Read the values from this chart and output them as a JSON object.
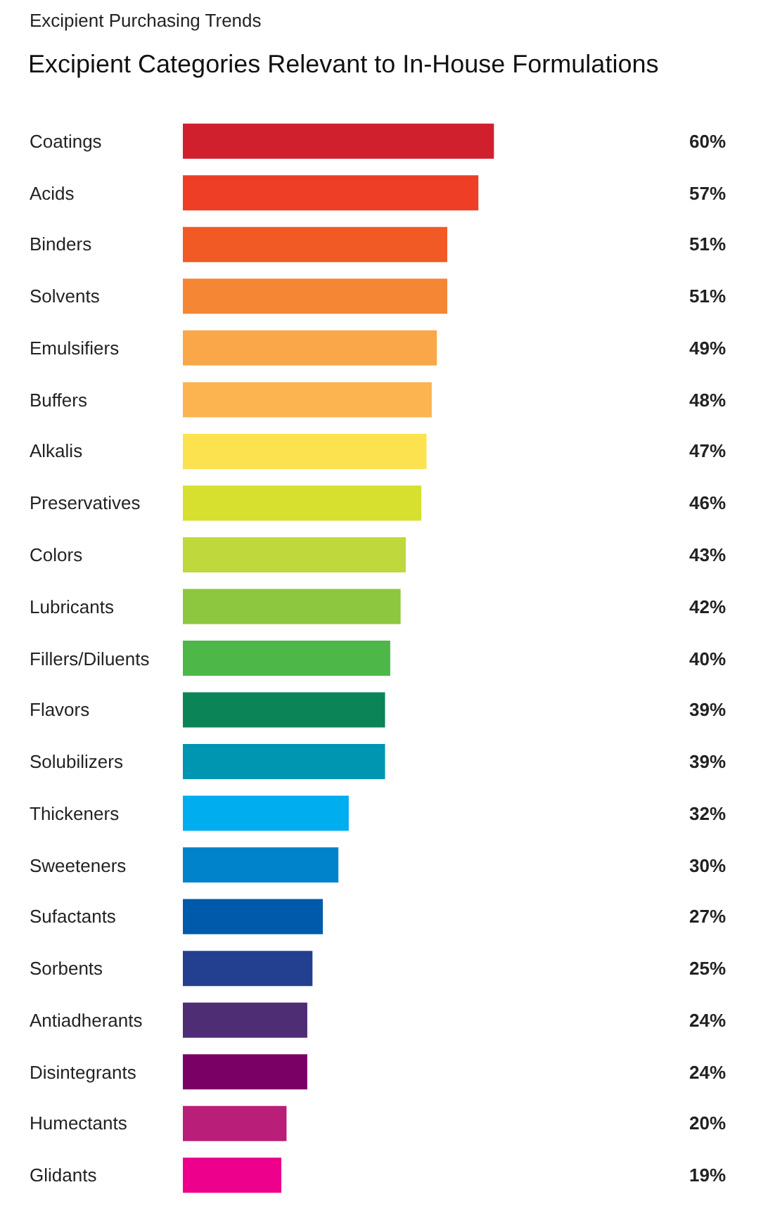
{
  "chart_data": {
    "type": "bar",
    "orientation": "horizontal",
    "subtitle": "Excipient Purchasing Trends",
    "title": "Excipient Categories Relevant to In-House Formulations",
    "categories": [
      "Coatings",
      "Acids",
      "Binders",
      "Solvents",
      "Emulsifiers",
      "Buffers",
      "Alkalis",
      "Preservatives",
      "Colors",
      "Lubricants",
      "Fillers/Diluents",
      "Flavors",
      "Solubilizers",
      "Thickeners",
      "Sweeteners",
      "Sufactants",
      "Sorbents",
      "Antiadherants",
      "Disintegrants",
      "Humectants",
      "Glidants"
    ],
    "values": [
      60,
      57,
      51,
      51,
      49,
      48,
      47,
      46,
      43,
      42,
      40,
      39,
      39,
      32,
      30,
      27,
      25,
      24,
      24,
      20,
      19
    ],
    "value_labels": [
      "60%",
      "57%",
      "51%",
      "51%",
      "49%",
      "48%",
      "47%",
      "46%",
      "43%",
      "42%",
      "40%",
      "39%",
      "39%",
      "32%",
      "30%",
      "27%",
      "25%",
      "24%",
      "24%",
      "20%",
      "19%"
    ],
    "colors": [
      "#d0202e",
      "#ef3e26",
      "#f15a24",
      "#f58634",
      "#faa74a",
      "#fbb450",
      "#fde24f",
      "#d7df2f",
      "#bfd83b",
      "#8dc63f",
      "#4db848",
      "#0b8457",
      "#0095b0",
      "#00aeef",
      "#0083ca",
      "#005aab",
      "#233f8f",
      "#4f2d74",
      "#7a0066",
      "#b91f78",
      "#ec008c"
    ],
    "legend": false,
    "tick_labels": false
  }
}
